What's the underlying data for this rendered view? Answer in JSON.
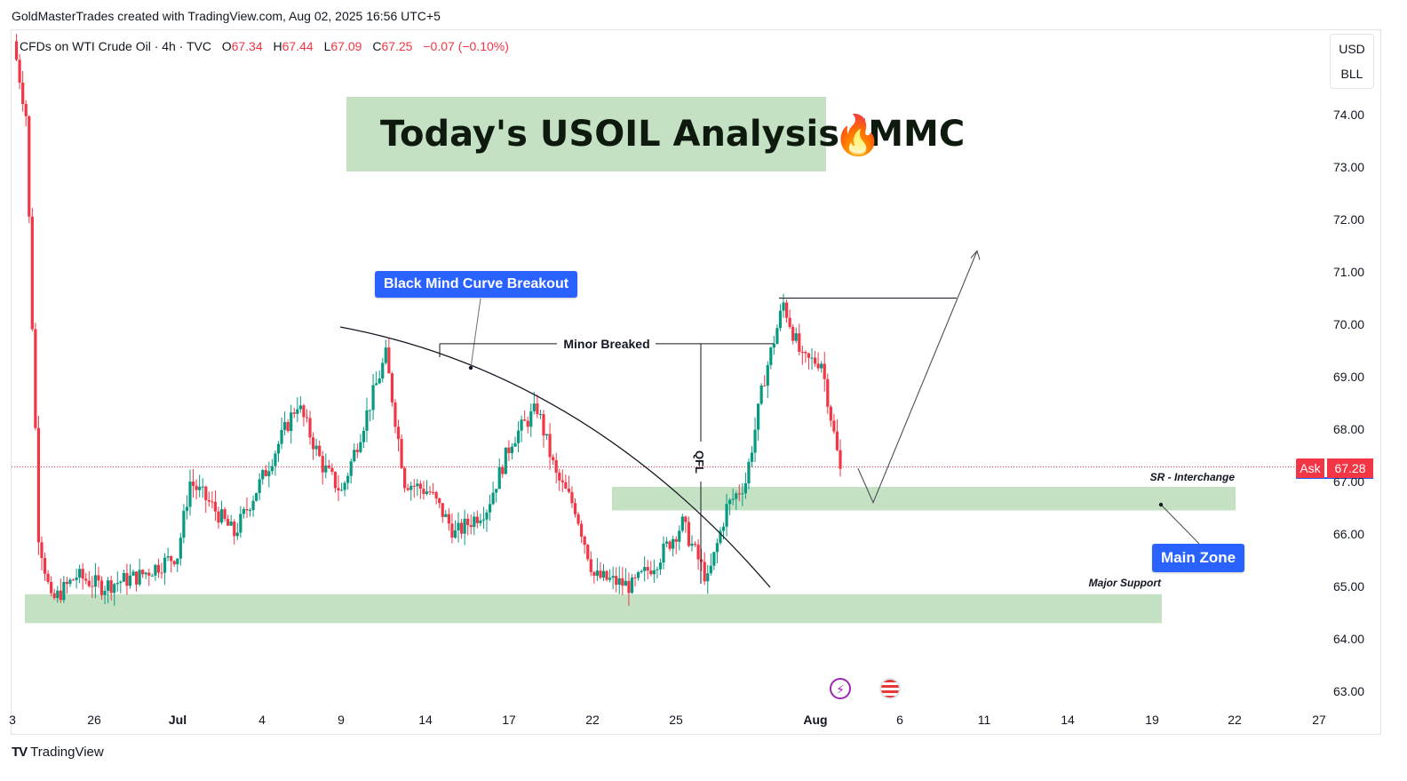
{
  "header": {
    "attribution": "GoldMasterTrades created with TradingView.com, Aug 02, 2025 16:56 UTC+5"
  },
  "legend": {
    "symbol": "CFDs on WTI Crude Oil · 4h · TVC",
    "open_label": "O",
    "open_value": "67.34",
    "high_label": "H",
    "high_value": "67.44",
    "low_label": "L",
    "low_value": "67.09",
    "close_label": "C",
    "close_value": "67.25",
    "change": "−0.07 (−0.10%)"
  },
  "units": {
    "currency": "USD",
    "unit": "BLL"
  },
  "title_banner": {
    "text": "Today's USOIL Analysis (MMC",
    "emoji": "🔥"
  },
  "annotations": {
    "curve_label": "Black Mind Curve Breakout",
    "minor_breaked": "Minor Breaked",
    "qfl": "QFL",
    "sr_interchange": "SR - Interchange",
    "main_zone": "Main Zone",
    "major_support": "Major Support"
  },
  "price_tag": {
    "label": "Ask",
    "value": "67.28"
  },
  "footer": {
    "brand": "TradingView",
    "mark": "TV"
  },
  "colors": {
    "up": "#089981",
    "down": "#f23645",
    "zone": "#c5e1c4",
    "label_blue": "#2962ff",
    "grid_text": "#131722"
  },
  "events": [
    {
      "icon": "flash-icon"
    },
    {
      "icon": "us-flag-icon"
    }
  ],
  "chart_data": {
    "type": "candlestick",
    "y_axis_ticks": [
      "74.00",
      "73.00",
      "72.00",
      "71.00",
      "70.00",
      "69.00",
      "68.00",
      "67.00",
      "66.00",
      "65.00",
      "64.00",
      "63.00"
    ],
    "x_axis_ticks": [
      "3",
      "26",
      "Jul",
      "4",
      "9",
      "14",
      "17",
      "22",
      "25",
      "Aug",
      "6",
      "11",
      "14",
      "19",
      "22",
      "27"
    ],
    "ylim": [
      62.65,
      75.6
    ],
    "current_price": 67.28,
    "zones": [
      {
        "name": "SR - Interchange",
        "low": 66.45,
        "high": 66.9
      },
      {
        "name": "Major Support",
        "low": 64.3,
        "high": 64.85
      }
    ],
    "key_levels": {
      "minor_breaked": 69.63,
      "recent_high": 70.5
    },
    "price_path": [
      [
        0,
        75.4
      ],
      [
        4,
        74.0
      ],
      [
        8,
        66.0
      ],
      [
        12,
        64.7
      ],
      [
        20,
        65.2
      ],
      [
        28,
        65.0
      ],
      [
        40,
        65.2
      ],
      [
        52,
        65.6
      ],
      [
        56,
        67.0
      ],
      [
        62,
        66.6
      ],
      [
        70,
        66.0
      ],
      [
        80,
        67.2
      ],
      [
        90,
        68.5
      ],
      [
        98,
        67.3
      ],
      [
        104,
        66.8
      ],
      [
        112,
        68.3
      ],
      [
        118,
        69.4
      ],
      [
        124,
        67.0
      ],
      [
        132,
        66.8
      ],
      [
        140,
        66.0
      ],
      [
        150,
        66.5
      ],
      [
        158,
        67.8
      ],
      [
        166,
        68.4
      ],
      [
        172,
        67.1
      ],
      [
        178,
        66.5
      ],
      [
        184,
        65.2
      ],
      [
        196,
        65.0
      ],
      [
        204,
        65.5
      ],
      [
        212,
        66.2
      ],
      [
        220,
        65.1
      ],
      [
        226,
        66.5
      ],
      [
        232,
        67.0
      ],
      [
        238,
        69.0
      ],
      [
        244,
        70.4
      ],
      [
        250,
        69.3
      ],
      [
        256,
        69.3
      ],
      [
        262,
        67.2
      ]
    ],
    "forecast_path": [
      [
        67.25,
        0
      ],
      [
        66.6,
        1
      ],
      [
        71.4,
        2
      ]
    ]
  }
}
